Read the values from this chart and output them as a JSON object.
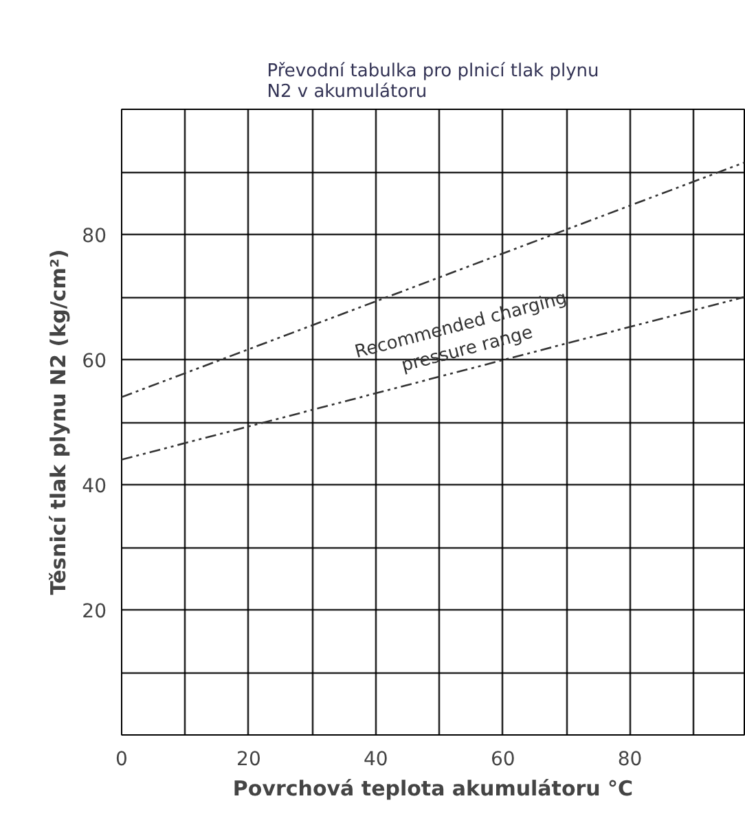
{
  "chart_data": {
    "type": "line",
    "title": "Převodní tabulka pro plnicí tlak plynu\nN2 v akumulátoru",
    "xlabel": "Povrchová teplota akumulátoru °C",
    "ylabel": "Těsnicí tlak plynu N2 (kg/cm²)",
    "x": [
      0,
      98
    ],
    "series": [
      {
        "color": "#333333",
        "values": [
          54,
          91.5
        ]
      },
      {
        "color": "#333333",
        "values": [
          44,
          70
        ]
      }
    ],
    "line_style": "dashed",
    "marker": "none",
    "grid": true,
    "annotations": [
      "Recommended charging\npressure range"
    ],
    "xlim": [
      0,
      98
    ],
    "ylim": [
      0,
      100
    ],
    "xticks": [
      0,
      {
        "value": 10,
        "label": null
      },
      20,
      {
        "value": 30,
        "label": null
      },
      40,
      {
        "value": 50,
        "label": null
      },
      60,
      {
        "value": 70,
        "label": null
      },
      80,
      {
        "value": 90,
        "label": null
      }
    ],
    "yticks": [
      {
        "value": 0,
        "label": null
      },
      {
        "value": 10,
        "label": null
      },
      20,
      {
        "value": 30,
        "label": null
      },
      40,
      {
        "value": 50,
        "label": null
      },
      60,
      {
        "value": 70,
        "label": null
      },
      80,
      {
        "value": 90,
        "label": null
      },
      {
        "value": 100,
        "label": null
      }
    ]
  }
}
